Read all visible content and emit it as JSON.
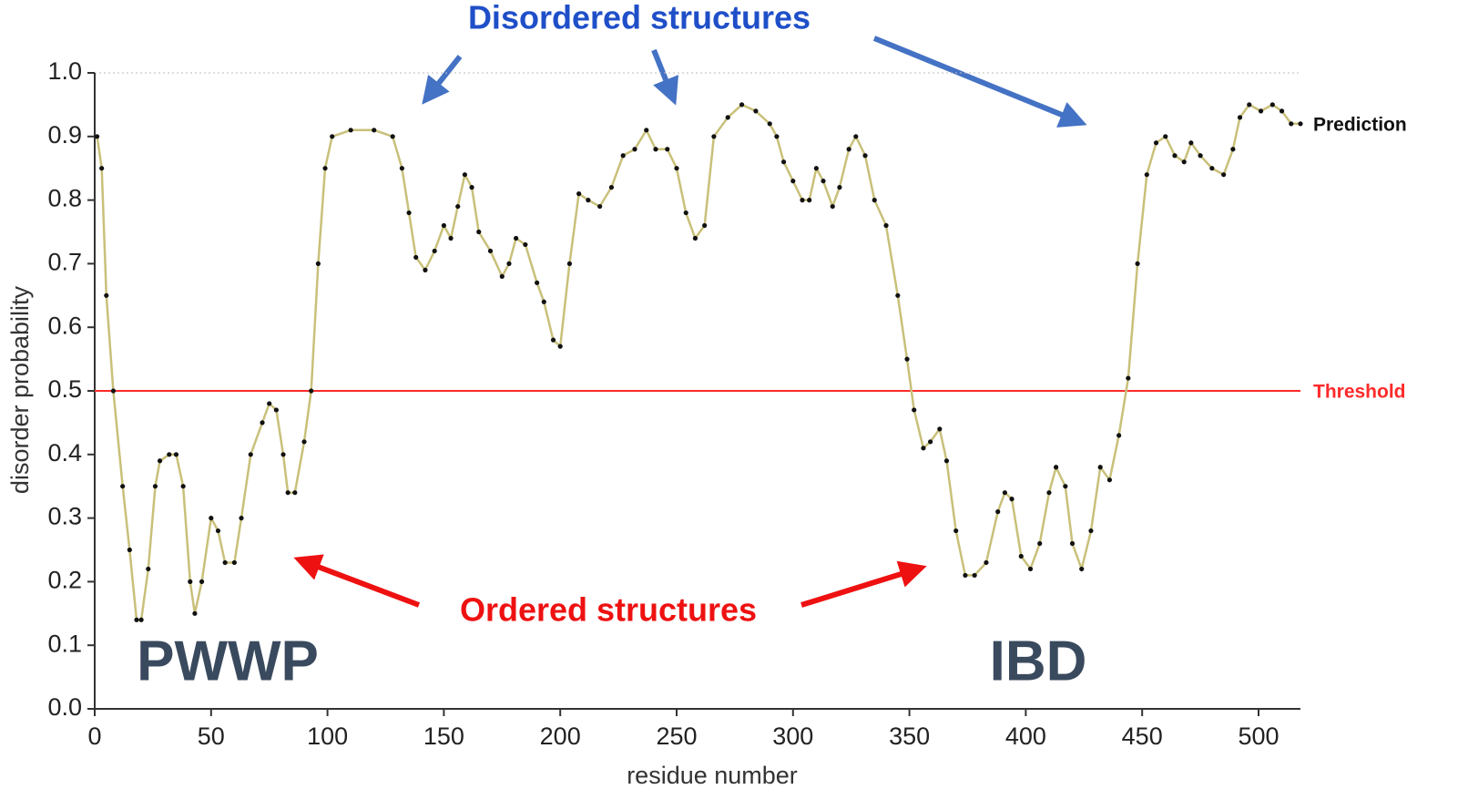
{
  "chart_data": {
    "type": "line",
    "x_label": "residue number",
    "y_label": "disorder probability",
    "xlim": [
      0,
      518
    ],
    "xticks": [
      0,
      50,
      100,
      150,
      200,
      250,
      300,
      350,
      400,
      450,
      500
    ],
    "ylim": [
      0,
      1
    ],
    "yticks": [
      {
        "value": 0,
        "label": "0.0"
      },
      0.1,
      0.2,
      0.3,
      0.4,
      0.5,
      0.6,
      0.7,
      0.8,
      0.9,
      {
        "value": 1,
        "label": "1.0"
      }
    ],
    "threshold": 0.5,
    "threshold_label": "Threshold",
    "threshold_color": "#ff2a2a",
    "annotations": {
      "disordered": "Disordered structures",
      "ordered": "Ordered structures",
      "left_domain": "PWWP",
      "right_domain": "IBD"
    },
    "series": [
      {
        "name": "Prediction",
        "color": "#111111",
        "x": [
          1,
          3,
          5,
          8,
          12,
          15,
          18,
          20,
          23,
          26,
          28,
          32,
          35,
          38,
          41,
          43,
          46,
          50,
          53,
          56,
          60,
          63,
          67,
          72,
          75,
          78,
          81,
          83,
          86,
          90,
          93,
          96,
          99,
          102,
          110,
          120,
          128,
          132,
          135,
          138,
          142,
          146,
          150,
          153,
          156,
          159,
          162,
          165,
          170,
          175,
          178,
          181,
          185,
          190,
          193,
          197,
          200,
          204,
          208,
          212,
          217,
          222,
          227,
          232,
          237,
          241,
          246,
          250,
          254,
          258,
          262,
          266,
          272,
          278,
          284,
          290,
          293,
          296,
          300,
          304,
          307,
          310,
          313,
          317,
          320,
          324,
          327,
          331,
          335,
          340,
          345,
          349,
          352,
          356,
          359,
          363,
          366,
          370,
          374,
          378,
          383,
          388,
          391,
          394,
          398,
          402,
          406,
          410,
          413,
          417,
          420,
          424,
          428,
          432,
          436,
          440,
          444,
          448,
          452,
          456,
          460,
          464,
          468,
          471,
          475,
          480,
          485,
          489,
          492,
          496,
          501,
          506,
          510,
          514,
          518
        ],
        "values": [
          0.9,
          0.85,
          0.65,
          0.5,
          0.35,
          0.25,
          0.14,
          0.14,
          0.22,
          0.35,
          0.39,
          0.4,
          0.4,
          0.35,
          0.2,
          0.15,
          0.2,
          0.3,
          0.28,
          0.23,
          0.23,
          0.3,
          0.4,
          0.45,
          0.48,
          0.47,
          0.4,
          0.34,
          0.34,
          0.42,
          0.5,
          0.7,
          0.85,
          0.9,
          0.91,
          0.91,
          0.9,
          0.85,
          0.78,
          0.71,
          0.69,
          0.72,
          0.76,
          0.74,
          0.79,
          0.84,
          0.82,
          0.75,
          0.72,
          0.68,
          0.7,
          0.74,
          0.73,
          0.67,
          0.64,
          0.58,
          0.57,
          0.7,
          0.81,
          0.8,
          0.79,
          0.82,
          0.87,
          0.88,
          0.91,
          0.88,
          0.88,
          0.85,
          0.78,
          0.74,
          0.76,
          0.9,
          0.93,
          0.95,
          0.94,
          0.92,
          0.9,
          0.86,
          0.83,
          0.8,
          0.8,
          0.85,
          0.83,
          0.79,
          0.82,
          0.88,
          0.9,
          0.87,
          0.8,
          0.76,
          0.65,
          0.55,
          0.47,
          0.41,
          0.42,
          0.44,
          0.39,
          0.28,
          0.21,
          0.21,
          0.23,
          0.31,
          0.34,
          0.33,
          0.24,
          0.22,
          0.26,
          0.34,
          0.38,
          0.35,
          0.26,
          0.22,
          0.28,
          0.38,
          0.36,
          0.43,
          0.52,
          0.7,
          0.84,
          0.89,
          0.9,
          0.87,
          0.86,
          0.89,
          0.87,
          0.85,
          0.84,
          0.88,
          0.93,
          0.95,
          0.94,
          0.95,
          0.94,
          0.92,
          0.92
        ]
      }
    ]
  }
}
